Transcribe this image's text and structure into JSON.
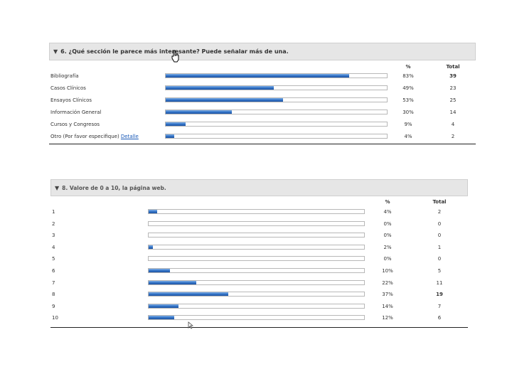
{
  "q6": {
    "title": "6. ¿Qué sección le parece más interesante? Puede señalar más de una.",
    "col_pct": "%",
    "col_total": "Total",
    "rows": [
      {
        "label": "Bibliografía",
        "link": "",
        "pct_text": "83%",
        "total": "39",
        "fraction": 0.83,
        "bold_total": true
      },
      {
        "label": "Casos Clínicos",
        "link": "",
        "pct_text": "49%",
        "total": "23",
        "fraction": 0.49,
        "bold_total": false
      },
      {
        "label": "Ensayos Clínicos",
        "link": "",
        "pct_text": "53%",
        "total": "25",
        "fraction": 0.53,
        "bold_total": false
      },
      {
        "label": "Información General",
        "link": "",
        "pct_text": "30%",
        "total": "14",
        "fraction": 0.3,
        "bold_total": false
      },
      {
        "label": "Cursos y Congresos",
        "link": "",
        "pct_text": "9%",
        "total": "4",
        "fraction": 0.09,
        "bold_total": false
      },
      {
        "label": "Otro (Por favor especifique)",
        "link": "Detalle",
        "pct_text": "4%",
        "total": "2",
        "fraction": 0.04,
        "bold_total": false
      }
    ]
  },
  "q8": {
    "title": "8. Valore de 0 a 10, la página web.",
    "col_pct": "%",
    "col_total": "Total",
    "rows": [
      {
        "label": "1",
        "pct_text": "4%",
        "total": "2",
        "fraction": 0.04,
        "bold_total": false
      },
      {
        "label": "2",
        "pct_text": "0%",
        "total": "0",
        "fraction": 0,
        "bold_total": false
      },
      {
        "label": "3",
        "pct_text": "0%",
        "total": "0",
        "fraction": 0,
        "bold_total": false
      },
      {
        "label": "4",
        "pct_text": "2%",
        "total": "1",
        "fraction": 0.02,
        "bold_total": false
      },
      {
        "label": "5",
        "pct_text": "0%",
        "total": "0",
        "fraction": 0,
        "bold_total": false
      },
      {
        "label": "6",
        "pct_text": "10%",
        "total": "5",
        "fraction": 0.1,
        "bold_total": false
      },
      {
        "label": "7",
        "pct_text": "22%",
        "total": "11",
        "fraction": 0.22,
        "bold_total": false
      },
      {
        "label": "8",
        "pct_text": "37%",
        "total": "19",
        "fraction": 0.37,
        "bold_total": true
      },
      {
        "label": "9",
        "pct_text": "14%",
        "total": "7",
        "fraction": 0.14,
        "bold_total": false
      },
      {
        "label": "10",
        "pct_text": "12%",
        "total": "6",
        "fraction": 0.12,
        "bold_total": false
      }
    ]
  },
  "colors": {
    "bar_fill": "#2f6fc2",
    "header_bg": "#e6e6e6",
    "link": "#1a5ab8"
  },
  "icons": {
    "collapse": "triangle-down-icon",
    "pointer": "mouse-cursor-icon"
  }
}
